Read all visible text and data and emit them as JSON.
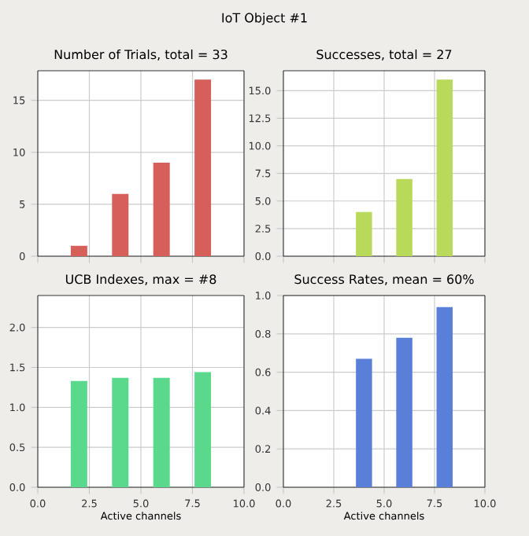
{
  "chart_data": [
    {
      "type": "bar",
      "title": "Number of Trials, total = 33",
      "annotations": [
        "IoT Object #1"
      ],
      "x": [
        2,
        4,
        6,
        8
      ],
      "values": [
        1,
        6,
        9,
        17
      ],
      "color": "#d65f5a",
      "xlim": [
        0,
        10
      ],
      "xticks": [
        {
          "value": 0,
          "label": null
        },
        {
          "value": 2.5,
          "label": null
        },
        {
          "value": 5,
          "label": null
        },
        {
          "value": 7.5,
          "label": null
        },
        {
          "value": 10,
          "label": null
        }
      ],
      "ylim": [
        0,
        17.85
      ],
      "yticks": [
        0,
        5,
        10,
        15
      ],
      "grid": true,
      "tick_labels": "y"
    },
    {
      "type": "bar",
      "title": "Successes, total = 27",
      "x": [
        2,
        4,
        6,
        8
      ],
      "values": [
        0,
        4,
        7,
        16
      ],
      "color": "#b9d95a",
      "xlim": [
        0,
        10
      ],
      "xticks": [
        {
          "value": 0,
          "label": null
        },
        {
          "value": 2.5,
          "label": null
        },
        {
          "value": 5,
          "label": null
        },
        {
          "value": 7.5,
          "label": null
        },
        {
          "value": 10,
          "label": null
        }
      ],
      "ylim": [
        0,
        16.8
      ],
      "yticks": [
        {
          "value": 0,
          "label": "0.0"
        },
        {
          "value": 2.5,
          "label": "2.5"
        },
        {
          "value": 5,
          "label": "5.0"
        },
        {
          "value": 7.5,
          "label": "7.5"
        },
        {
          "value": 10,
          "label": "10.0"
        },
        {
          "value": 12.5,
          "label": "12.5"
        },
        {
          "value": 15,
          "label": "15.0"
        }
      ],
      "grid": true,
      "tick_labels": "y"
    },
    {
      "type": "bar",
      "title": "UCB Indexes, max = #8",
      "xlabel": "Active channels",
      "x": [
        2,
        4,
        6,
        8
      ],
      "values": [
        1.33,
        1.37,
        1.37,
        1.44
      ],
      "color": "#5ad98c",
      "xlim": [
        0,
        10
      ],
      "xticks": [
        {
          "value": 0,
          "label": "0.0"
        },
        {
          "value": 2.5,
          "label": "2.5"
        },
        {
          "value": 5,
          "label": "5.0"
        },
        {
          "value": 7.5,
          "label": "7.5"
        },
        {
          "value": 10,
          "label": "10.0"
        }
      ],
      "ylim": [
        0,
        2.4
      ],
      "yticks": [
        {
          "value": 0,
          "label": "0.0"
        },
        {
          "value": 0.5,
          "label": "0.5"
        },
        {
          "value": 1,
          "label": "1.0"
        },
        {
          "value": 1.5,
          "label": "1.5"
        },
        {
          "value": 2,
          "label": "2.0"
        }
      ],
      "grid": true
    },
    {
      "type": "bar",
      "title": "Success Rates, mean = 60%",
      "xlabel": "Active channels",
      "x": [
        2,
        4,
        6,
        8
      ],
      "values": [
        0,
        0.67,
        0.78,
        0.94
      ],
      "color": "#5a7fd9",
      "xlim": [
        0,
        10
      ],
      "xticks": [
        {
          "value": 0,
          "label": "0.0"
        },
        {
          "value": 2.5,
          "label": "2.5"
        },
        {
          "value": 5,
          "label": "5.0"
        },
        {
          "value": 7.5,
          "label": "7.5"
        },
        {
          "value": 10,
          "label": "10.0"
        }
      ],
      "ylim": [
        0,
        1.0
      ],
      "yticks": [
        {
          "value": 0,
          "label": "0.0"
        },
        {
          "value": 0.2,
          "label": "0.2"
        },
        {
          "value": 0.4,
          "label": "0.4"
        },
        {
          "value": 0.6,
          "label": "0.6"
        },
        {
          "value": 0.8,
          "label": "0.8"
        },
        {
          "value": 1.0,
          "label": "1.0"
        }
      ],
      "grid": true
    }
  ]
}
